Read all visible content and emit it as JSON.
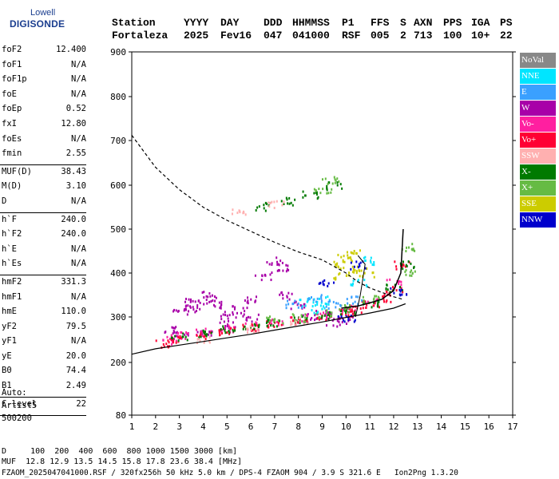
{
  "logo": {
    "top": "Lowell",
    "main": "DIGISONDE"
  },
  "header": {
    "row1": [
      "Station",
      "YYYY",
      "DAY",
      "DDD",
      "HHMMSS",
      "P1",
      "FFS",
      "S",
      "AXN",
      "PPS",
      "IGA",
      "PS"
    ],
    "row2": [
      "Fortaleza",
      "2025",
      "Fev16",
      "047",
      "041000",
      "RSF",
      "005",
      "2",
      "713",
      "100",
      "10+",
      "22"
    ]
  },
  "params": [
    {
      "label": "foF2",
      "value": "12.400"
    },
    {
      "label": "foF1",
      "value": "N/A"
    },
    {
      "label": "foF1p",
      "value": "N/A"
    },
    {
      "label": "foE",
      "value": "N/A"
    },
    {
      "label": "foEp",
      "value": "0.52"
    },
    {
      "label": "fxI",
      "value": "12.80"
    },
    {
      "label": "foEs",
      "value": "N/A"
    },
    {
      "label": "fmin",
      "value": "2.55"
    },
    {
      "label": "MUF(D)",
      "value": "38.43"
    },
    {
      "label": "M(D)",
      "value": "3.10"
    },
    {
      "label": "D",
      "value": "N/A"
    },
    {
      "label": "h`F",
      "value": "240.0"
    },
    {
      "label": "h`F2",
      "value": "240.0"
    },
    {
      "label": "h`E",
      "value": "N/A"
    },
    {
      "label": "h`Es",
      "value": "N/A"
    },
    {
      "label": "hmF2",
      "value": "331.3"
    },
    {
      "label": "hmF1",
      "value": "N/A"
    },
    {
      "label": "hmE",
      "value": "110.0"
    },
    {
      "label": "yF2",
      "value": "79.5"
    },
    {
      "label": "yF1",
      "value": "N/A"
    },
    {
      "label": "yE",
      "value": "20.0"
    },
    {
      "label": "B0",
      "value": "74.4"
    },
    {
      "label": "B1",
      "value": "2.49"
    },
    {
      "label": "C-level",
      "value": "22"
    }
  ],
  "auto": {
    "line1": "Auto:",
    "line2": "Artist5",
    "line3": "500200"
  },
  "legend": [
    {
      "label": "NoVal",
      "color": "#888888"
    },
    {
      "label": "NNE",
      "color": "#00e5ff"
    },
    {
      "label": "E",
      "color": "#3aa0ff"
    },
    {
      "label": "W",
      "color": "#a800a8"
    },
    {
      "label": "Vo-",
      "color": "#ff1fa0"
    },
    {
      "label": "Vo+",
      "color": "#ff0033"
    },
    {
      "label": "SSW",
      "color": "#ffb0b0"
    },
    {
      "label": "X-",
      "color": "#007a00"
    },
    {
      "label": "X+",
      "color": "#66bb44"
    },
    {
      "label": "SSE",
      "color": "#cccc00"
    },
    {
      "label": "NNW",
      "color": "#0000cc"
    }
  ],
  "bottom": {
    "line1": "D     100  200  400  600  800 1000 1500 3000 [km]",
    "line2": "MUF  12.8 12.9 13.5 14.5 15.8 17.8 23.6 38.4 [MHz]",
    "line3": "FZAOM_2025047041000.RSF / 320fx256h 50 kHz 5.0 km / DPS-4 FZAOM 904 / 3.9 S 321.6 E   Ion2Png 1.3.20"
  },
  "chart_data": {
    "type": "scatter",
    "xlim": [
      1,
      17
    ],
    "ylim": [
      80,
      900
    ],
    "x_ticks": [
      1,
      2,
      3,
      4,
      5,
      6,
      7,
      8,
      9,
      10,
      11,
      12,
      13,
      14,
      15,
      16,
      17
    ],
    "y_ticks": [
      80,
      200,
      300,
      400,
      500,
      600,
      700,
      800,
      900
    ],
    "grid": false,
    "legend_position": "right",
    "series": [
      {
        "name": "W",
        "points": [
          [
            2.6,
            275
          ],
          [
            3,
            315
          ],
          [
            3.3,
            335
          ],
          [
            3.6,
            320
          ],
          [
            4,
            340
          ],
          [
            4.3,
            355
          ],
          [
            4.6,
            330
          ],
          [
            5,
            305
          ],
          [
            5.5,
            320
          ],
          [
            6,
            340
          ],
          [
            6.5,
            395
          ],
          [
            7,
            430
          ],
          [
            7.3,
            415
          ],
          [
            7.5,
            350
          ],
          [
            8,
            330
          ],
          [
            8.5,
            300
          ],
          [
            9,
            310
          ],
          [
            9.5,
            290
          ],
          [
            10,
            295
          ],
          [
            6,
            300
          ],
          [
            5,
            285
          ],
          [
            4,
            270
          ],
          [
            3,
            260
          ]
        ]
      },
      {
        "name": "Vo-",
        "points": [
          [
            2.5,
            250
          ],
          [
            3,
            260
          ],
          [
            4,
            268
          ],
          [
            5,
            275
          ],
          [
            6,
            282
          ],
          [
            7,
            290
          ],
          [
            8,
            298
          ],
          [
            9,
            306
          ],
          [
            10,
            320
          ],
          [
            11,
            335
          ],
          [
            12,
            380
          ]
        ]
      },
      {
        "name": "Vo+",
        "points": [
          [
            2.2,
            242
          ],
          [
            3,
            252
          ],
          [
            4,
            262
          ],
          [
            5,
            270
          ],
          [
            6,
            278
          ],
          [
            7,
            285
          ],
          [
            8,
            293
          ],
          [
            9,
            302
          ],
          [
            10,
            312
          ],
          [
            10.5,
            320
          ],
          [
            11,
            330
          ],
          [
            11.5,
            345
          ],
          [
            12,
            365
          ],
          [
            12.3,
            420
          ]
        ]
      },
      {
        "name": "X-",
        "points": [
          [
            3,
            258
          ],
          [
            4,
            265
          ],
          [
            5,
            273
          ],
          [
            6,
            282
          ],
          [
            7,
            290
          ],
          [
            8,
            296
          ],
          [
            9,
            305
          ],
          [
            10,
            315
          ],
          [
            11,
            332
          ],
          [
            12,
            368
          ],
          [
            12.5,
            420
          ],
          [
            6.5,
            553
          ],
          [
            7.5,
            565
          ],
          [
            8.5,
            580
          ],
          [
            9.5,
            600
          ]
        ]
      },
      {
        "name": "X+",
        "points": [
          [
            7,
            295
          ],
          [
            8,
            300
          ],
          [
            9,
            310
          ],
          [
            10,
            322
          ],
          [
            11,
            342
          ],
          [
            12.5,
            400
          ],
          [
            12.6,
            460
          ],
          [
            9.3,
            612
          ],
          [
            9,
            590
          ]
        ]
      },
      {
        "name": "SSE",
        "points": [
          [
            9.5,
            420
          ],
          [
            10,
            435
          ],
          [
            10.2,
            445
          ],
          [
            10.5,
            410
          ],
          [
            10.8,
            400
          ],
          [
            9.8,
            395
          ]
        ]
      },
      {
        "name": "NNE",
        "points": [
          [
            8.3,
            335
          ],
          [
            9,
            340
          ],
          [
            10.9,
            430
          ],
          [
            10.5,
            380
          ],
          [
            8.8,
            320
          ]
        ]
      },
      {
        "name": "E",
        "points": [
          [
            7.8,
            330
          ],
          [
            8.6,
            345
          ],
          [
            9.4,
            330
          ],
          [
            10.3,
            340
          ]
        ]
      },
      {
        "name": "NNW",
        "points": [
          [
            10.5,
            420
          ],
          [
            9.2,
            380
          ],
          [
            10,
            300
          ],
          [
            12.2,
            360
          ]
        ]
      },
      {
        "name": "SSW",
        "points": [
          [
            4,
            250
          ],
          [
            6,
            275
          ],
          [
            8,
            292
          ],
          [
            5.5,
            540
          ],
          [
            7,
            560
          ]
        ]
      }
    ],
    "lines": {
      "dashed_profile": [
        [
          1,
          712
        ],
        [
          2,
          640
        ],
        [
          3,
          590
        ],
        [
          4,
          550
        ],
        [
          5,
          520
        ],
        [
          6,
          495
        ],
        [
          7,
          470
        ],
        [
          8,
          448
        ],
        [
          9,
          430
        ],
        [
          10,
          400
        ],
        [
          10.5,
          380
        ],
        [
          11,
          366
        ],
        [
          11.5,
          356
        ],
        [
          12,
          346
        ],
        [
          12.4,
          340
        ]
      ],
      "solid_lower": [
        [
          1,
          218
        ],
        [
          2,
          230
        ],
        [
          3,
          238
        ],
        [
          4,
          246
        ],
        [
          5,
          254
        ],
        [
          6,
          262
        ],
        [
          7,
          271
        ],
        [
          8,
          280
        ],
        [
          9,
          289
        ],
        [
          10,
          299
        ],
        [
          11,
          309
        ],
        [
          12,
          320
        ],
        [
          12.5,
          330
        ]
      ],
      "trace_o": [
        [
          9.8,
          320
        ],
        [
          10.5,
          325
        ],
        [
          11,
          332
        ],
        [
          11.5,
          340
        ],
        [
          12,
          360
        ],
        [
          12.3,
          400
        ],
        [
          12.4,
          500
        ]
      ],
      "trace_x": [
        [
          10.4,
          300
        ],
        [
          10.6,
          350
        ],
        [
          10.8,
          420
        ],
        [
          10.5,
          440
        ]
      ]
    }
  }
}
